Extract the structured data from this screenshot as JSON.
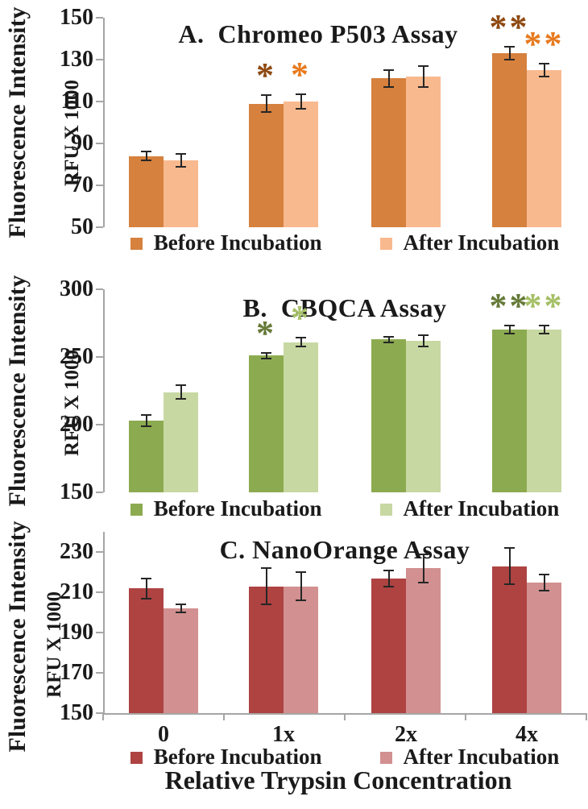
{
  "figure": {
    "y_axis_label_line1": "Fluorescence Intensity",
    "y_axis_label_line2": "RFU X 1000",
    "x_axis_title": "Relative Trypsin Concentration",
    "axis_color": "#a6a6a6",
    "error_bar_color": "#262626",
    "text_color": "#1a1a1a"
  },
  "chart_data": [
    {
      "type": "bar",
      "panel": "A",
      "title": "A.  Chromeo P503 Assay",
      "categories": [
        "0",
        "1x",
        "2x",
        "4x"
      ],
      "xlabel": "Relative Trypsin Concentration",
      "ylabel": "Fluorescence Intensity RFU X 1000",
      "ylim": [
        50,
        150
      ],
      "yticks": [
        50,
        70,
        90,
        110,
        130,
        150
      ],
      "grid": false,
      "legend_position": "bottom",
      "series": [
        {
          "name": "Before Incubation",
          "color": "#d6813e",
          "sig_color": "#8e4a12",
          "values": [
            84,
            109,
            121,
            133
          ],
          "errors": [
            2,
            4,
            4,
            3
          ],
          "sig": [
            "",
            "*",
            "",
            "**"
          ]
        },
        {
          "name": "After Incubation",
          "color": "#f8b98e",
          "sig_color": "#e87a1e",
          "values": [
            82,
            110,
            122,
            125
          ],
          "errors": [
            3,
            3.5,
            5,
            3
          ],
          "sig": [
            "",
            "*",
            "",
            "**"
          ]
        }
      ]
    },
    {
      "type": "bar",
      "panel": "B",
      "title": "B.  CBQCA Assay",
      "categories": [
        "0",
        "1x",
        "2x",
        "4x"
      ],
      "xlabel": "Relative Trypsin Concentration",
      "ylabel": "Fluorescence Intensity RFU X 1000",
      "ylim": [
        150,
        300
      ],
      "yticks": [
        150,
        200,
        250,
        300
      ],
      "grid": false,
      "legend_position": "bottom",
      "series": [
        {
          "name": "Before Incubation",
          "color": "#8cab50",
          "sig_color": "#667a38",
          "values": [
            203,
            251,
            263,
            270
          ],
          "errors": [
            4,
            2,
            2,
            3
          ],
          "sig": [
            "",
            "*",
            "",
            "**"
          ]
        },
        {
          "name": "After Incubation",
          "color": "#c7d8a2",
          "sig_color": "#a5c066",
          "values": [
            224,
            261,
            262,
            270
          ],
          "errors": [
            5,
            3,
            4,
            3
          ],
          "sig": [
            "",
            "*",
            "",
            "**"
          ]
        }
      ]
    },
    {
      "type": "bar",
      "panel": "C",
      "title": "C. NanoOrange Assay",
      "categories": [
        "0",
        "1x",
        "2x",
        "4x"
      ],
      "xlabel": "Relative Trypsin Concentration",
      "ylabel": "Fluorescence Intensity RFU X 1000",
      "ylim": [
        150,
        240
      ],
      "yticks": [
        150,
        170,
        190,
        210,
        230
      ],
      "grid": false,
      "legend_position": "bottom",
      "series": [
        {
          "name": "Before Incubation",
          "color": "#ae4342",
          "sig_color": "",
          "values": [
            212,
            213,
            217,
            223
          ],
          "errors": [
            5,
            9,
            4,
            9
          ],
          "sig": [
            "",
            "",
            "",
            ""
          ]
        },
        {
          "name": "After Incubation",
          "color": "#d29090",
          "sig_color": "",
          "values": [
            202,
            213,
            222,
            215
          ],
          "errors": [
            2,
            7,
            7,
            4
          ],
          "sig": [
            "",
            "",
            "",
            ""
          ]
        }
      ]
    }
  ]
}
